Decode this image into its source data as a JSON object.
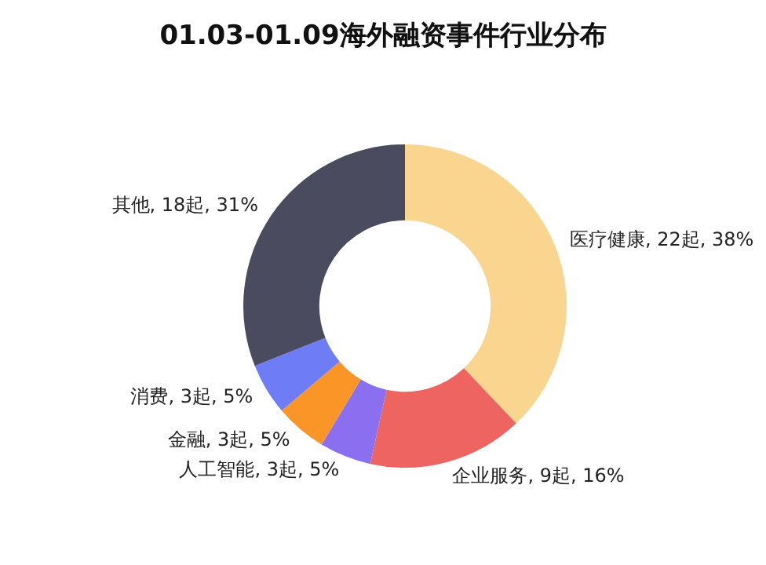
{
  "chart_data": {
    "type": "donut",
    "title": "01.03-01.09海外融资事件行业分布",
    "categories": [
      "医疗健康",
      "企业服务",
      "人工智能",
      "金融",
      "消费",
      "其他"
    ],
    "values": [
      22,
      9,
      3,
      3,
      3,
      18
    ],
    "value_labels": [
      "22起, 38%",
      "9起, 16%",
      "3起, 5%",
      "3起, 5%",
      "3起, 5%",
      "18起, 31%"
    ],
    "colors": [
      "#f9d590",
      "#ee6461",
      "#8a70f0",
      "#fa9628",
      "#6e7df5",
      "#4b4b5f"
    ],
    "legend": false
  }
}
